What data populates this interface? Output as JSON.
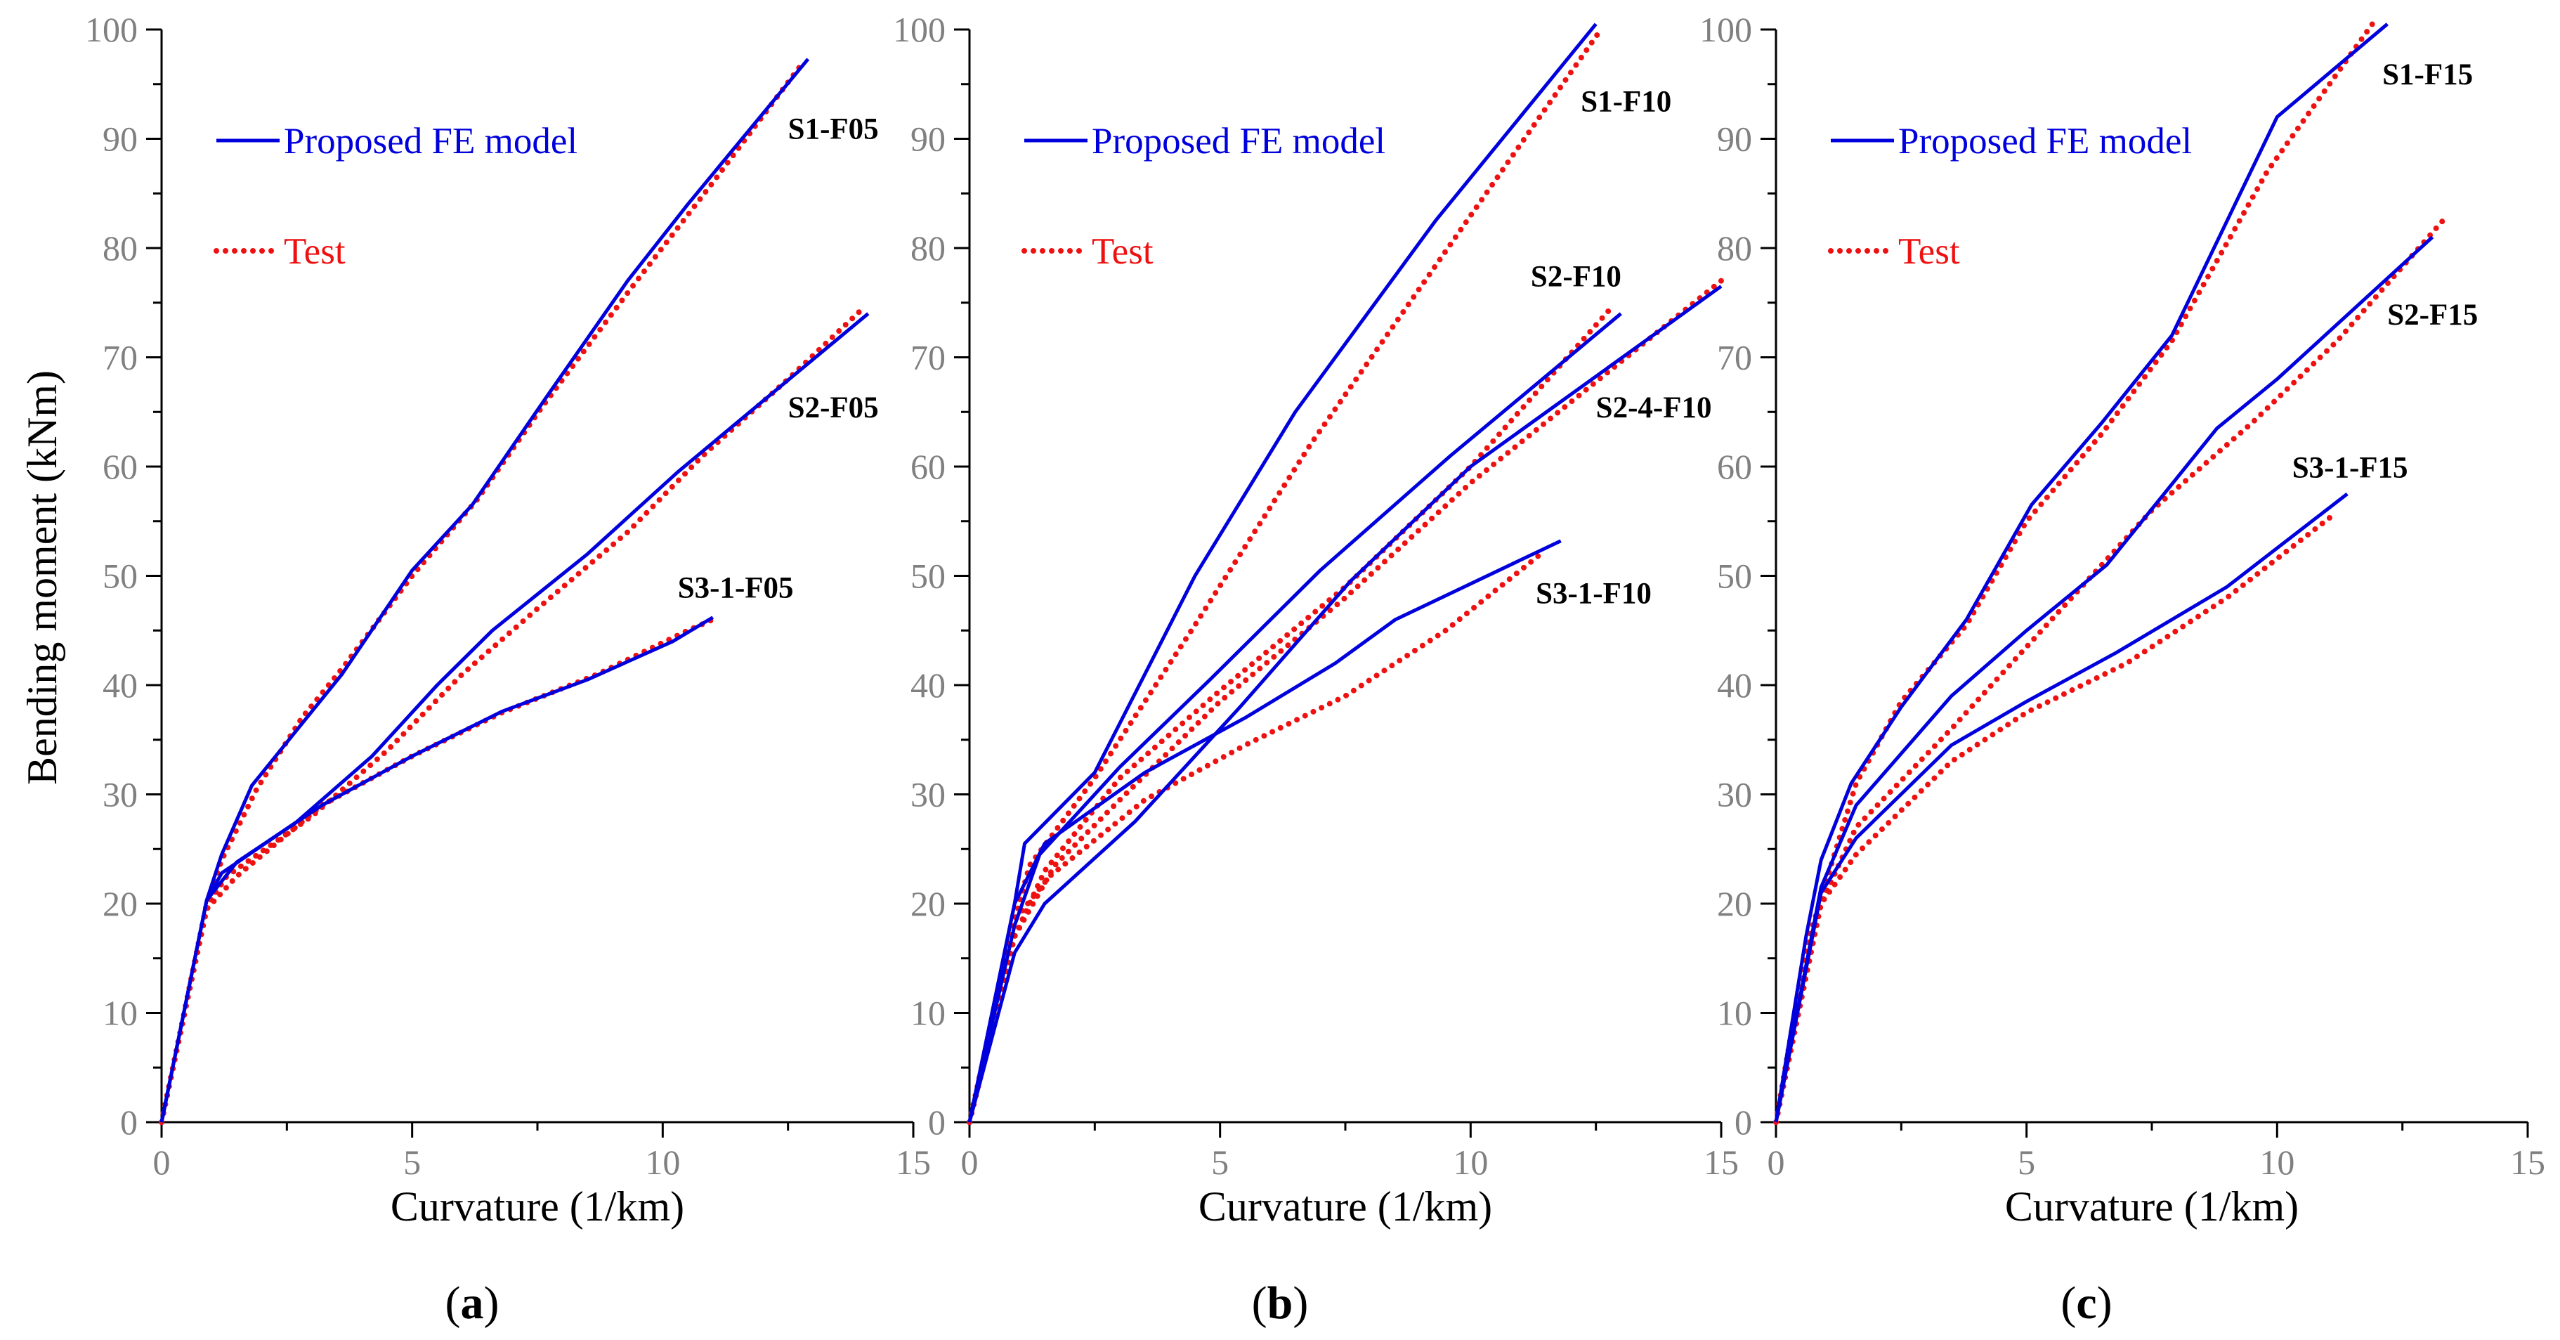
{
  "figure": {
    "ylabel": "Bending moment (kNm)",
    "legend": {
      "model_label": "Proposed FE model",
      "test_label": "Test"
    },
    "colors": {
      "model": "#0000dd",
      "test": "#ee1111",
      "axis": "#000000",
      "tick_label": "#808080"
    }
  },
  "chart_data": [
    {
      "type": "line",
      "panel_label": "(a)",
      "panel_letter": "a",
      "xlabel": "Curvature (1/km)",
      "ylabel": "Bending moment (kNm)",
      "xlim": [
        0,
        15
      ],
      "ylim": [
        0,
        100
      ],
      "xticks": [
        "0",
        "5",
        "10",
        "15"
      ],
      "yticks": [
        "0",
        "10",
        "20",
        "30",
        "40",
        "50",
        "60",
        "70",
        "80",
        "90",
        "100"
      ],
      "legend": [
        "Proposed FE model",
        "Test"
      ],
      "series": [
        {
          "name": "S1-F05",
          "kind": "model",
          "points": [
            [
              0,
              0
            ],
            [
              0.9,
              20.3
            ],
            [
              1.2,
              24.5
            ],
            [
              1.8,
              30.8
            ],
            [
              3.6,
              41
            ],
            [
              5,
              50.5
            ],
            [
              6.2,
              56.5
            ],
            [
              7.7,
              66.5
            ],
            [
              9.3,
              77
            ],
            [
              10.5,
              84
            ],
            [
              12.9,
              97.3
            ]
          ]
        },
        {
          "name": "S1-F05",
          "kind": "test",
          "points": [
            [
              0,
              0
            ],
            [
              0.9,
              20
            ],
            [
              1.2,
              24
            ],
            [
              1.9,
              30.5
            ],
            [
              2.8,
              37
            ],
            [
              3.6,
              41.5
            ],
            [
              5,
              50
            ],
            [
              6.3,
              57
            ],
            [
              7.6,
              65.5
            ],
            [
              9.4,
              76.5
            ],
            [
              11,
              86
            ],
            [
              12.8,
              97
            ]
          ]
        },
        {
          "name": "S2-F05",
          "kind": "model",
          "points": [
            [
              0,
              0
            ],
            [
              0.9,
              20.3
            ],
            [
              1.2,
              22.8
            ],
            [
              2.7,
              27.5
            ],
            [
              4.2,
              33.5
            ],
            [
              5.5,
              40
            ],
            [
              6.6,
              45
            ],
            [
              8.5,
              52
            ],
            [
              10.3,
              59.5
            ],
            [
              12,
              66
            ],
            [
              14.1,
              74
            ]
          ]
        },
        {
          "name": "S2-F05",
          "kind": "test",
          "points": [
            [
              0,
              0
            ],
            [
              0.9,
              19.8
            ],
            [
              1.3,
              22.5
            ],
            [
              3,
              28
            ],
            [
              4.5,
              34
            ],
            [
              6,
              41
            ],
            [
              7.5,
              47
            ],
            [
              9.3,
              54
            ],
            [
              10.8,
              61
            ],
            [
              12.5,
              68
            ],
            [
              14,
              74.5
            ]
          ]
        },
        {
          "name": "S3-1-F05",
          "kind": "model",
          "points": [
            [
              0,
              0
            ],
            [
              0.9,
              20.3
            ],
            [
              1.5,
              23.8
            ],
            [
              3.2,
              29
            ],
            [
              5,
              33.5
            ],
            [
              6.8,
              37.6
            ],
            [
              8.5,
              40.5
            ],
            [
              10.2,
              44
            ],
            [
              11,
              46.2
            ]
          ]
        },
        {
          "name": "S3-1-F05",
          "kind": "test",
          "points": [
            [
              0,
              0
            ],
            [
              0.9,
              19.5
            ],
            [
              1.5,
              22.5
            ],
            [
              3.2,
              29
            ],
            [
              5,
              33.5
            ],
            [
              6.8,
              37.5
            ],
            [
              8.7,
              41
            ],
            [
              10.5,
              45
            ],
            [
              11,
              46
            ]
          ]
        }
      ],
      "annotations": [
        {
          "text": "S1-F05",
          "x": 12.5,
          "y": 90
        },
        {
          "text": "S2-F05",
          "x": 12.5,
          "y": 64.5
        },
        {
          "text": "S3-1-F05",
          "x": 10.3,
          "y": 48
        }
      ]
    },
    {
      "type": "line",
      "panel_label": "(b)",
      "panel_letter": "b",
      "xlabel": "Curvature (1/km)",
      "ylabel": "",
      "xlim": [
        0,
        15
      ],
      "ylim": [
        0,
        100
      ],
      "xticks": [
        "0",
        "5",
        "10",
        "15"
      ],
      "yticks": [
        "0",
        "10",
        "20",
        "30",
        "40",
        "50",
        "60",
        "70",
        "80",
        "90",
        "100"
      ],
      "legend": [
        "Proposed FE model",
        "Test"
      ],
      "series": [
        {
          "name": "S1-F10",
          "kind": "model",
          "points": [
            [
              0,
              0
            ],
            [
              0.9,
              20
            ],
            [
              1.1,
              25.5
            ],
            [
              2.5,
              32
            ],
            [
              4.5,
              50
            ],
            [
              6.5,
              65
            ],
            [
              9.3,
              82.5
            ],
            [
              12.5,
              100.5
            ]
          ]
        },
        {
          "name": "S1-F10",
          "kind": "test",
          "points": [
            [
              0,
              0
            ],
            [
              0.9,
              18.5
            ],
            [
              1.2,
              23.5
            ],
            [
              2.5,
              31.5
            ],
            [
              4.5,
              45.5
            ],
            [
              6.8,
              62
            ],
            [
              9.7,
              81
            ],
            [
              12.6,
              100
            ]
          ]
        },
        {
          "name": "S2-F10",
          "kind": "model",
          "points": [
            [
              0,
              0
            ],
            [
              0.9,
              18
            ],
            [
              1.4,
              24.5
            ],
            [
              3,
              32.5
            ],
            [
              4.8,
              40.5
            ],
            [
              7,
              50.5
            ],
            [
              9.6,
              61
            ],
            [
              13,
              74
            ]
          ]
        },
        {
          "name": "S2-F10",
          "kind": "test",
          "points": [
            [
              0,
              0
            ],
            [
              0.9,
              17
            ],
            [
              1.5,
              23
            ],
            [
              3,
              31.5
            ],
            [
              5,
              39.5
            ],
            [
              7.5,
              49
            ],
            [
              10,
              60
            ],
            [
              12.8,
              74.5
            ]
          ]
        },
        {
          "name": "S2-4-F10",
          "kind": "model",
          "points": [
            [
              0,
              0
            ],
            [
              0.9,
              15.5
            ],
            [
              1.5,
              20
            ],
            [
              3.3,
              27.5
            ],
            [
              5.4,
              38
            ],
            [
              7.6,
              49.5
            ],
            [
              10,
              60
            ],
            [
              15,
              76.5
            ]
          ]
        },
        {
          "name": "S2-4-F10",
          "kind": "test",
          "points": [
            [
              0,
              0
            ],
            [
              0.9,
              17
            ],
            [
              1.7,
              23.5
            ],
            [
              3,
              29.5
            ],
            [
              5,
              38.5
            ],
            [
              7.5,
              48
            ],
            [
              10,
              58.5
            ],
            [
              15,
              77
            ]
          ]
        },
        {
          "name": "S3-1-F10",
          "kind": "model",
          "points": [
            [
              0,
              0
            ],
            [
              0.9,
              20
            ],
            [
              1.5,
              25.5
            ],
            [
              3.5,
              32
            ],
            [
              5.5,
              37
            ],
            [
              7.3,
              42
            ],
            [
              8.5,
              46
            ],
            [
              11.8,
              53.2
            ]
          ]
        },
        {
          "name": "S3-1-F10",
          "kind": "test",
          "points": [
            [
              0,
              0
            ],
            [
              0.9,
              18.5
            ],
            [
              1.6,
              22.5
            ],
            [
              3.5,
              29.5
            ],
            [
              5.5,
              34.5
            ],
            [
              7.5,
              39
            ],
            [
              9.5,
              45
            ],
            [
              11.4,
              52
            ]
          ]
        }
      ],
      "annotations": [
        {
          "text": "S1-F10",
          "x": 12.2,
          "y": 92.5
        },
        {
          "text": "S2-F10",
          "x": 11.2,
          "y": 76.5
        },
        {
          "text": "S2-4-F10",
          "x": 12.5,
          "y": 64.5
        },
        {
          "text": "S3-1-F10",
          "x": 11.3,
          "y": 47.5
        }
      ]
    },
    {
      "type": "line",
      "panel_label": "(c)",
      "panel_letter": "c",
      "xlabel": "Curvature (1/km)",
      "ylabel": "",
      "xlim": [
        0,
        15
      ],
      "ylim": [
        0,
        100
      ],
      "xticks": [
        "0",
        "5",
        "10",
        "15"
      ],
      "yticks": [
        "0",
        "10",
        "20",
        "30",
        "40",
        "50",
        "60",
        "70",
        "80",
        "90",
        "100"
      ],
      "legend": [
        "Proposed FE model",
        "Test"
      ],
      "series": [
        {
          "name": "S1-F15",
          "kind": "model",
          "points": [
            [
              0,
              0
            ],
            [
              0.6,
              17
            ],
            [
              0.9,
              24
            ],
            [
              1.5,
              31
            ],
            [
              2.5,
              38
            ],
            [
              3.8,
              46
            ],
            [
              5.1,
              56.5
            ],
            [
              6.5,
              64
            ],
            [
              7.9,
              72
            ],
            [
              10,
              92
            ],
            [
              12.2,
              100.5
            ]
          ]
        },
        {
          "name": "S1-F15",
          "kind": "test",
          "points": [
            [
              0,
              0
            ],
            [
              0.6,
              16
            ],
            [
              1,
              22
            ],
            [
              1.6,
              31
            ],
            [
              2.5,
              38.5
            ],
            [
              3.8,
              45.5
            ],
            [
              5,
              55
            ],
            [
              6.5,
              63
            ],
            [
              7.9,
              71.5
            ],
            [
              9.8,
              87
            ],
            [
              11.9,
              100.5
            ]
          ]
        },
        {
          "name": "S2-F15",
          "kind": "model",
          "points": [
            [
              0,
              0
            ],
            [
              0.9,
              21.5
            ],
            [
              1.6,
              29
            ],
            [
              3.5,
              39
            ],
            [
              5,
              45
            ],
            [
              6.6,
              51
            ],
            [
              8.8,
              63.5
            ],
            [
              10,
              68
            ],
            [
              13.1,
              81
            ]
          ]
        },
        {
          "name": "S2-F15",
          "kind": "test",
          "points": [
            [
              0,
              0
            ],
            [
              0.9,
              20
            ],
            [
              1.6,
              27
            ],
            [
              3.5,
              36
            ],
            [
              5,
              43.5
            ],
            [
              7.5,
              56
            ],
            [
              9.5,
              64
            ],
            [
              11.2,
              71.5
            ],
            [
              13.4,
              83
            ]
          ]
        },
        {
          "name": "S3-1-F15",
          "kind": "model",
          "points": [
            [
              0,
              0
            ],
            [
              0.9,
              21
            ],
            [
              1.6,
              26
            ],
            [
              3.5,
              34.5
            ],
            [
              5,
              38.5
            ],
            [
              6.8,
              43
            ],
            [
              9,
              49
            ],
            [
              11.4,
              57.5
            ]
          ]
        },
        {
          "name": "S3-1-F15",
          "kind": "test",
          "points": [
            [
              0,
              0
            ],
            [
              0.9,
              20
            ],
            [
              1.6,
              24.5
            ],
            [
              3.5,
              33
            ],
            [
              5,
              37.5
            ],
            [
              7,
              42
            ],
            [
              9,
              48
            ],
            [
              11.1,
              55.5
            ]
          ]
        }
      ],
      "annotations": [
        {
          "text": "S1-F15",
          "x": 12.1,
          "y": 95
        },
        {
          "text": "S2-F15",
          "x": 12.2,
          "y": 73
        },
        {
          "text": "S3-1-F15",
          "x": 10.3,
          "y": 59
        }
      ]
    }
  ]
}
